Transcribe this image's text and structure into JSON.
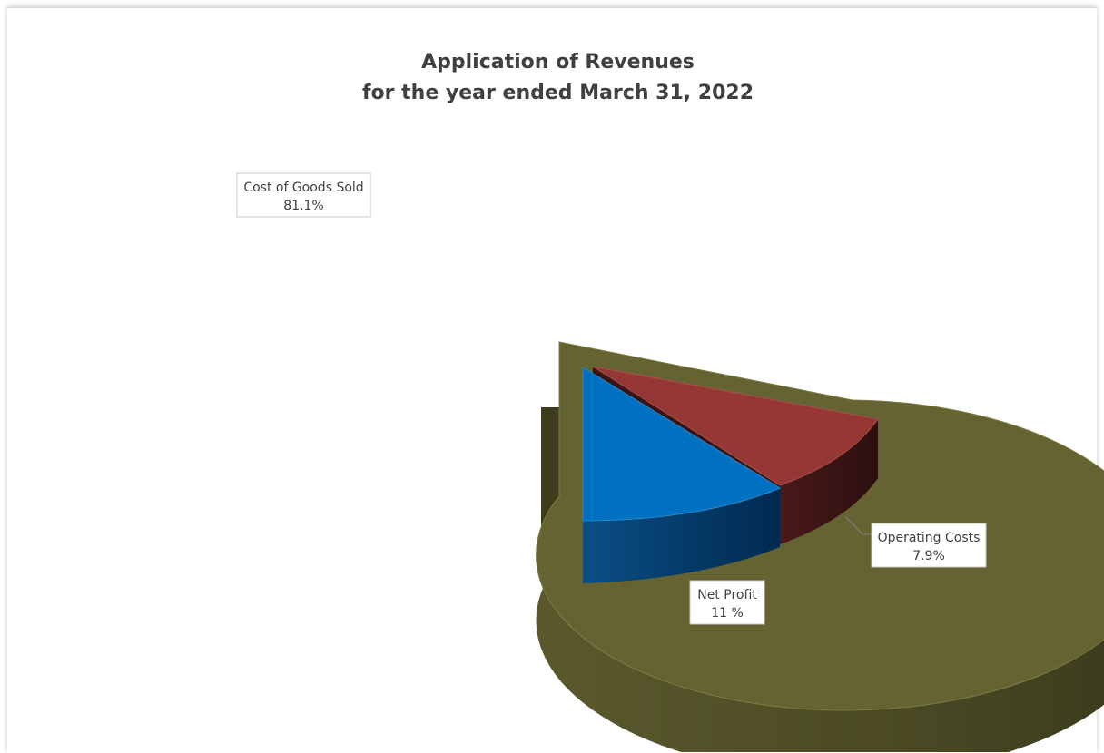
{
  "chart_data": {
    "type": "pie",
    "title": "Application of Revenues",
    "subtitle": "for the year ended March 31, 2022",
    "slices": [
      {
        "name": "Cost of Goods Sold",
        "value": 81.1,
        "label": "81.1%",
        "color": "#646331"
      },
      {
        "name": "Operating Costs",
        "value": 7.9,
        "label": "7.9%",
        "color": "#953735"
      },
      {
        "name": "Net Profit",
        "value": 11,
        "label": "11 %",
        "color": "#0070c0"
      }
    ],
    "legend": "none",
    "three_d": true
  }
}
